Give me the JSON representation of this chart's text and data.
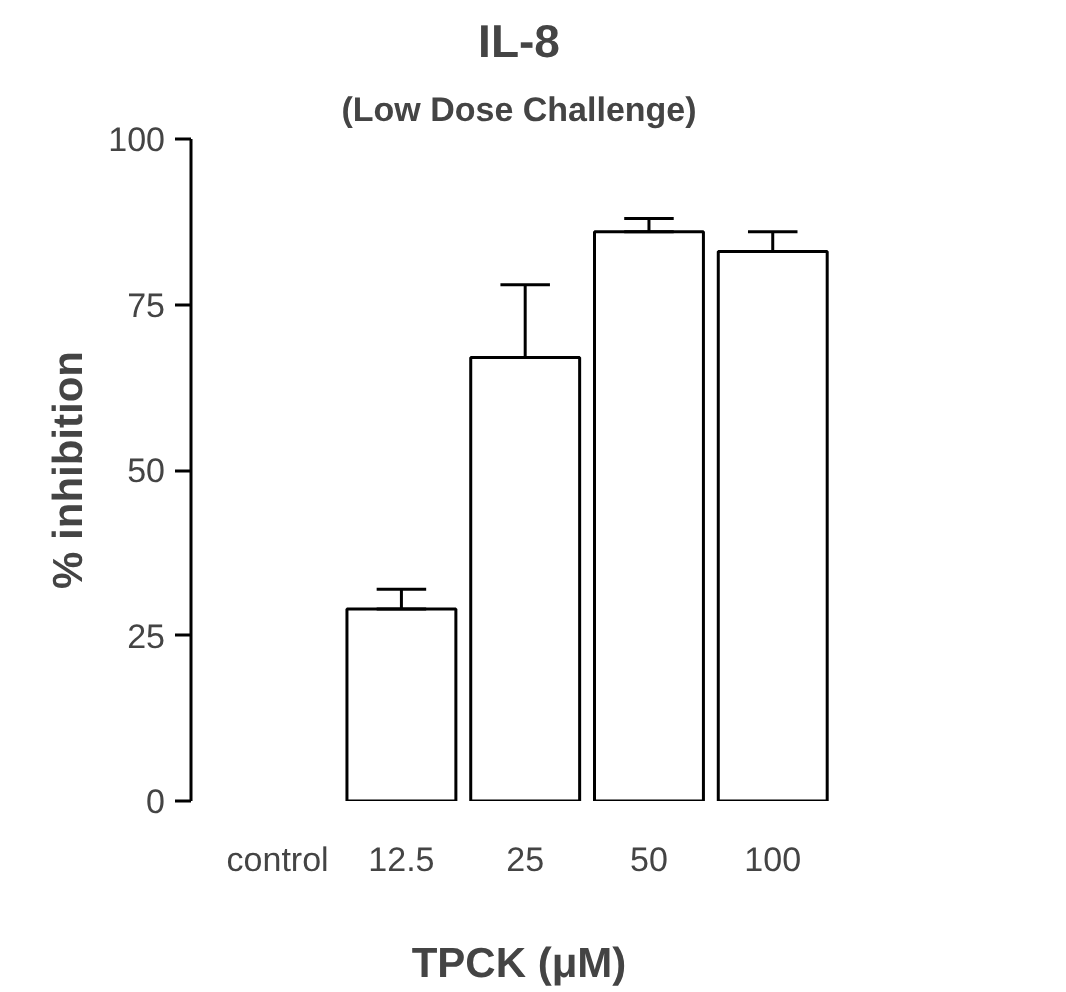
{
  "chart_data": {
    "type": "bar",
    "title": "IL-8",
    "subtitle": "(Low Dose Challenge)",
    "xlabel": "TPCK (μM)",
    "ylabel": "% inhibition",
    "categories": [
      "control",
      "12.5",
      "25",
      "50",
      "100"
    ],
    "values": [
      0,
      29,
      67,
      86,
      83
    ],
    "errors": [
      null,
      [
        29,
        32
      ],
      [
        67,
        78
      ],
      [
        86,
        88
      ],
      [
        83,
        86
      ]
    ],
    "color": "#ffffff",
    "ylim": [
      0,
      100
    ],
    "yticks": [
      0,
      25,
      50,
      75,
      100
    ],
    "grid": false
  }
}
